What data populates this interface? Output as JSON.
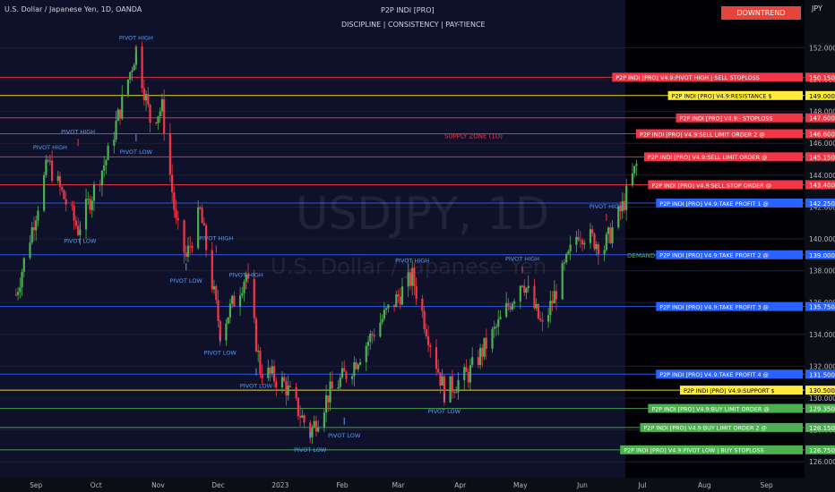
{
  "header": {
    "symbol_title": "U.S. Dollar / Japanese Yen, 1D, OANDA",
    "indicator_name": "P2P INDI [PRO]",
    "tagline": "DISCIPLINE  |  CONSISTENCY  |  PAY-TIENCE",
    "trend_button": "DOWNTREND",
    "currency": "JPY"
  },
  "watermark": {
    "symbol": "USDJPY, 1D",
    "name": "U.S. Dollar / Japanese Yen"
  },
  "chart_data": {
    "type": "candlestick",
    "symbol": "USDJPY",
    "timeframe": "1D",
    "ylim": [
      125.0,
      155.0
    ],
    "y_ticks": [
      126.0,
      128.0,
      130.0,
      132.0,
      134.0,
      136.0,
      138.0,
      140.0,
      142.0,
      144.0,
      146.0,
      148.0,
      150.0,
      152.0
    ],
    "x_ticks": [
      "Sep",
      "Oct",
      "Nov",
      "Dec",
      "2023",
      "Feb",
      "Mar",
      "Apr",
      "May",
      "Jun",
      "Jul",
      "Aug",
      "Sep"
    ],
    "colors": {
      "up": "#4caf50",
      "down": "#f23645",
      "background": "#0e1129",
      "future_zone": "#000000"
    },
    "swing_path": [
      {
        "date": "2022-08-22",
        "close": 136.5
      },
      {
        "date": "2022-09-07",
        "close": 144.8
      },
      {
        "date": "2022-09-22",
        "close": 140.6
      },
      {
        "date": "2022-10-07",
        "close": 145.3
      },
      {
        "date": "2022-10-21",
        "close": 151.9
      },
      {
        "date": "2022-10-28",
        "close": 147.5
      },
      {
        "date": "2022-11-03",
        "close": 148.2
      },
      {
        "date": "2022-11-10",
        "close": 140.9
      },
      {
        "date": "2022-11-15",
        "close": 138.8
      },
      {
        "date": "2022-11-22",
        "close": 141.7
      },
      {
        "date": "2022-12-02",
        "close": 134.2
      },
      {
        "date": "2022-12-15",
        "close": 137.8
      },
      {
        "date": "2022-12-22",
        "close": 131.8
      },
      {
        "date": "2023-01-03",
        "close": 130.9
      },
      {
        "date": "2023-01-16",
        "close": 127.8
      },
      {
        "date": "2023-01-25",
        "close": 130.2
      },
      {
        "date": "2023-02-06",
        "close": 132.0
      },
      {
        "date": "2023-02-20",
        "close": 134.8
      },
      {
        "date": "2023-03-08",
        "close": 137.6
      },
      {
        "date": "2023-03-24",
        "close": 130.4
      },
      {
        "date": "2023-04-05",
        "close": 131.5
      },
      {
        "date": "2023-04-20",
        "close": 134.6
      },
      {
        "date": "2023-05-02",
        "close": 137.5
      },
      {
        "date": "2023-05-12",
        "close": 134.4
      },
      {
        "date": "2023-05-30",
        "close": 140.5
      },
      {
        "date": "2023-06-12",
        "close": 139.5
      },
      {
        "date": "2023-06-21",
        "close": 142.0
      },
      {
        "date": "2023-06-28",
        "close": 144.6
      }
    ],
    "levels": [
      {
        "label": "P2P INDI [PRO] V4.9:PIVOT HIGH | SELL STOPLOSS",
        "price": 150.15,
        "price_label": "150.150",
        "color": "#f23645"
      },
      {
        "label": "P2P INDI [PRO] V4.9:RESISTANCE $",
        "price": 149.0,
        "price_label": "149.000",
        "color": "#ffeb3b"
      },
      {
        "label": "P2P INDI [PRO] V4.9:- STOPLOSS",
        "price": 147.6,
        "price_label": "147.600",
        "color": "#f23645"
      },
      {
        "label": "P2P INDI [PRO] V4.9:SELL LIMIT ORDER 2 @",
        "price": 146.6,
        "price_label": "146.600",
        "color": "#f23645"
      },
      {
        "label": "P2P INDI [PRO] V4.9:SELL LIMIT ORDER @",
        "price": 145.15,
        "price_label": "145.150",
        "color": "#f23645"
      },
      {
        "label": "P2P INDI [PRO] V4.9:SELL STOP ORDER @",
        "price": 143.4,
        "price_label": "143.400",
        "color": "#f23645"
      },
      {
        "label": "P2P INDI [PRO] V4.9:TAKE PROFIT 1 @",
        "price": 142.25,
        "price_label": "142.250",
        "color": "#2962ff"
      },
      {
        "label": "P2P INDI [PRO] V4.9:TAKE PROFIT 2 @",
        "price": 139.0,
        "price_label": "139.000",
        "color": "#2962ff"
      },
      {
        "label": "P2P INDI [PRO] V4.9:TAKE PROFIT 3 @",
        "price": 135.75,
        "price_label": "135.750",
        "color": "#2962ff"
      },
      {
        "label": "P2P INDI [PRO] V4.9:TAKE PROFIT 4 @",
        "price": 131.5,
        "price_label": "131.500",
        "color": "#2962ff"
      },
      {
        "label": "P2P INDI [PRO] V4.9:SUPPORT $",
        "price": 130.5,
        "price_label": "130.500",
        "color": "#ffeb3b"
      },
      {
        "label": "P2P INDI [PRO] V4.9:BUY LIMIT ORDER @",
        "price": 129.35,
        "price_label": "129.350",
        "color": "#4caf50"
      },
      {
        "label": "P2P INDI [PRO] V4.9:BUY LIMIT ORDER 2 @",
        "price": 128.15,
        "price_label": "128.150",
        "color": "#4caf50"
      },
      {
        "label": "P2P INDI [PRO] V4.9:PIVOT LOW | BUY STOPLOSS",
        "price": 126.75,
        "price_label": "126.750",
        "color": "#4caf50"
      }
    ],
    "zones": [
      {
        "label": "SUPPLY ZONE (1D)",
        "price": 146.5,
        "color": "#f23645"
      },
      {
        "label": "DEMAND ZONE (1H)",
        "price": 139.0,
        "color": "#4caf50"
      }
    ],
    "pivots": [
      {
        "label": "PIVOT HIGH",
        "date": "2022-09-08",
        "price": 145.5,
        "kind": "high"
      },
      {
        "label": "PIVOT HIGH",
        "date": "2022-09-22",
        "price": 146.5,
        "kind": "high"
      },
      {
        "label": "PIVOT HIGH",
        "date": "2022-10-21",
        "price": 152.4,
        "kind": "high"
      },
      {
        "label": "PIVOT LOW",
        "date": "2022-09-23",
        "price": 140.3,
        "kind": "low"
      },
      {
        "label": "PIVOT LOW",
        "date": "2022-10-21",
        "price": 145.9,
        "kind": "low"
      },
      {
        "label": "PIVOT HIGH",
        "date": "2022-11-30",
        "price": 139.8,
        "kind": "high"
      },
      {
        "label": "PIVOT LOW",
        "date": "2022-11-15",
        "price": 137.8,
        "kind": "low"
      },
      {
        "label": "PIVOT HIGH",
        "date": "2022-12-15",
        "price": 137.5,
        "kind": "high"
      },
      {
        "label": "PIVOT LOW",
        "date": "2022-12-02",
        "price": 133.3,
        "kind": "low"
      },
      {
        "label": "PIVOT LOW",
        "date": "2022-12-20",
        "price": 131.2,
        "kind": "low"
      },
      {
        "label": "PIVOT HIGH",
        "date": "2023-03-08",
        "price": 138.4,
        "kind": "high"
      },
      {
        "label": "PIVOT LOW",
        "date": "2023-01-16",
        "price": 127.2,
        "kind": "low"
      },
      {
        "label": "PIVOT LOW",
        "date": "2023-02-02",
        "price": 128.1,
        "kind": "low"
      },
      {
        "label": "PIVOT LOW",
        "date": "2023-03-24",
        "price": 129.6,
        "kind": "low"
      },
      {
        "label": "PIVOT HIGH",
        "date": "2023-05-02",
        "price": 138.5,
        "kind": "high"
      },
      {
        "label": "PIVOT HIGH",
        "date": "2023-06-13",
        "price": 141.8,
        "kind": "high"
      }
    ]
  }
}
